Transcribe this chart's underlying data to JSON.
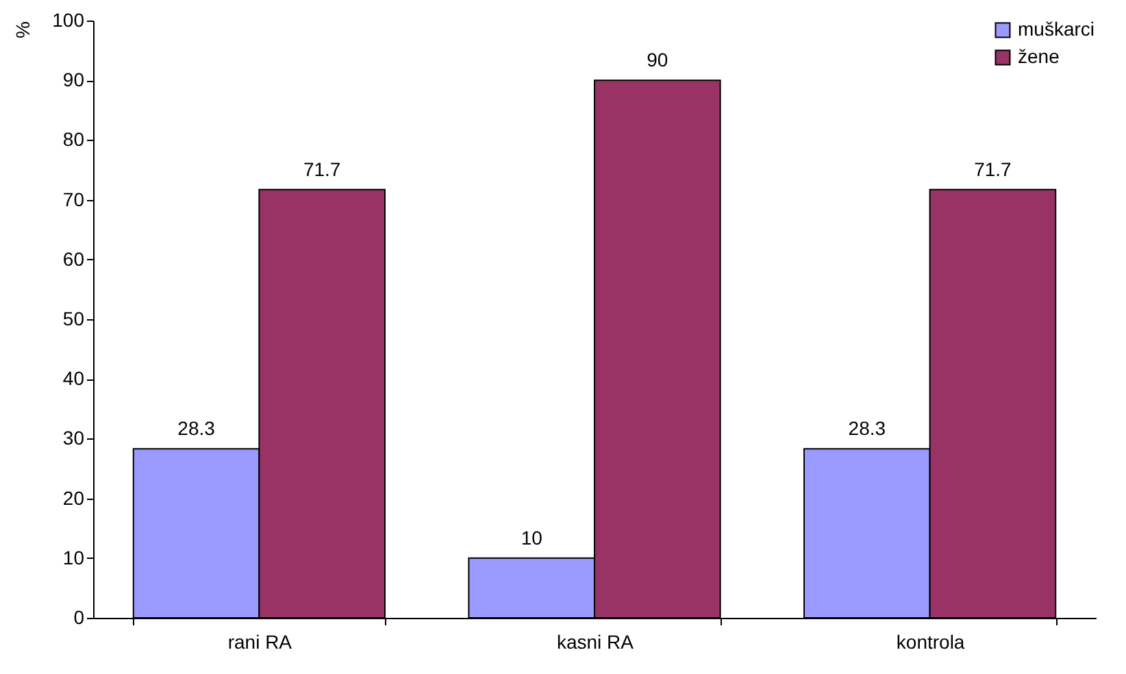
{
  "chart_data": {
    "type": "bar",
    "ylabel": "%",
    "categories": [
      "rani RA",
      "kasni RA",
      "kontrola"
    ],
    "series": [
      {
        "name": "muškarci",
        "color": "#9999ff",
        "values": [
          28.3,
          10,
          28.3
        ]
      },
      {
        "name": "žene",
        "color": "#993366",
        "values": [
          71.7,
          90,
          71.7
        ]
      }
    ],
    "ylim": [
      0,
      100
    ],
    "yticks": [
      0,
      10,
      20,
      30,
      40,
      50,
      60,
      70,
      80,
      90,
      100
    ],
    "data_labels": true,
    "legend": "top right"
  }
}
